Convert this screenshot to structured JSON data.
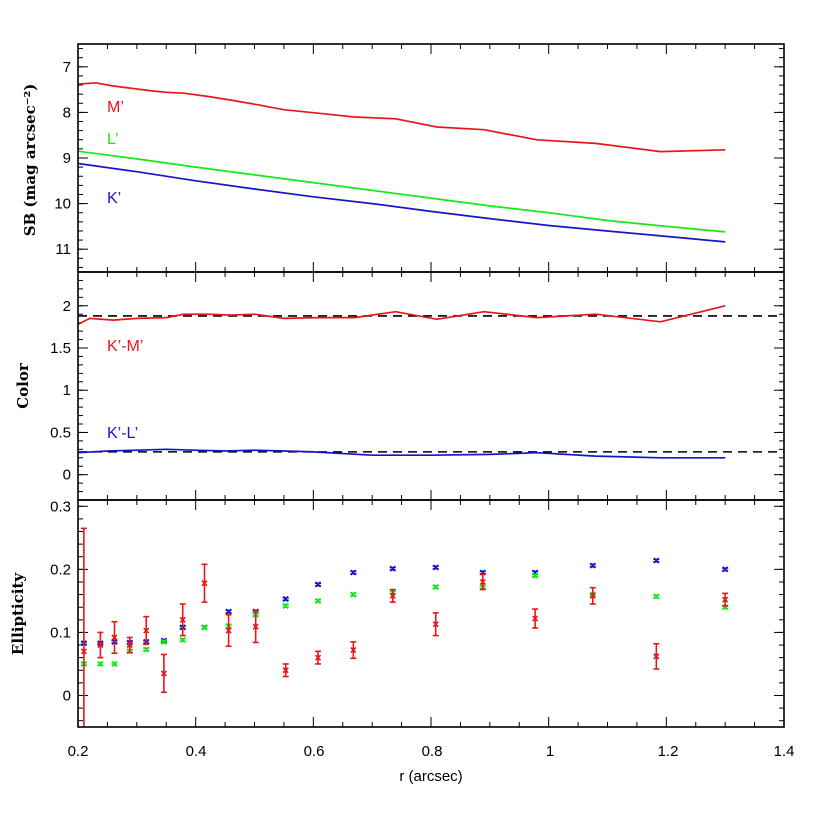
{
  "chart_data": {
    "type": "line",
    "xlabel": "r (arcsec)",
    "xlim": [
      0.2,
      1.4
    ],
    "xticks": [
      "0.2",
      "0.4",
      "0.6",
      "0.8",
      "1",
      "1.2",
      "1.4"
    ],
    "colors": {
      "M": "#e8161b",
      "L": "#16e816",
      "K": "#1616c8"
    },
    "panels": [
      {
        "id": "sb",
        "ylabel": "SB (mag arcsec⁻²)",
        "ylim": [
          11.5,
          6.5
        ],
        "inverted": true,
        "yticks": [
          "7",
          "8",
          "9",
          "10",
          "11"
        ],
        "series": [
          {
            "name": "M’",
            "color": "#e8161b",
            "x": [
              0.2,
              0.23,
              0.26,
              0.29,
              0.32,
              0.35,
              0.38,
              0.42,
              0.46,
              0.5,
              0.55,
              0.61,
              0.67,
              0.74,
              0.81,
              0.89,
              0.98,
              1.08,
              1.19,
              1.3
            ],
            "y": [
              7.38,
              7.35,
              7.42,
              7.47,
              7.52,
              7.56,
              7.58,
              7.65,
              7.73,
              7.82,
              7.94,
              8.02,
              8.1,
              8.14,
              8.32,
              8.38,
              8.6,
              8.68,
              8.86,
              8.82
            ]
          },
          {
            "name": "L’",
            "color": "#16e816",
            "x": [
              0.2,
              0.3,
              0.4,
              0.5,
              0.6,
              0.7,
              0.8,
              0.9,
              1.0,
              1.1,
              1.2,
              1.3
            ],
            "y": [
              8.85,
              9.02,
              9.2,
              9.37,
              9.54,
              9.71,
              9.88,
              10.05,
              10.2,
              10.37,
              10.5,
              10.62
            ]
          },
          {
            "name": "K’",
            "color": "#1616c8",
            "x": [
              0.2,
              0.3,
              0.4,
              0.5,
              0.6,
              0.7,
              0.8,
              0.9,
              1.0,
              1.1,
              1.2,
              1.3
            ],
            "y": [
              9.12,
              9.3,
              9.5,
              9.68,
              9.85,
              10.0,
              10.17,
              10.33,
              10.48,
              10.6,
              10.72,
              10.84
            ]
          }
        ]
      },
      {
        "id": "color",
        "ylabel": "Color",
        "ylim": [
          -0.3,
          2.4
        ],
        "yticks": [
          "0",
          "0.5",
          "1",
          "1.5",
          "2"
        ],
        "ytick_values": [
          0,
          0.5,
          1,
          1.5,
          2
        ],
        "reference_lines": [
          1.88,
          0.27
        ],
        "series": [
          {
            "name": "K’-M’",
            "color": "#e8161b",
            "x": [
              0.2,
              0.22,
              0.26,
              0.3,
              0.35,
              0.38,
              0.42,
              0.46,
              0.5,
              0.55,
              0.61,
              0.67,
              0.74,
              0.81,
              0.89,
              0.98,
              1.08,
              1.19,
              1.3
            ],
            "y": [
              1.78,
              1.85,
              1.83,
              1.85,
              1.86,
              1.9,
              1.9,
              1.89,
              1.9,
              1.85,
              1.86,
              1.86,
              1.93,
              1.84,
              1.93,
              1.86,
              1.9,
              1.81,
              2.0
            ]
          },
          {
            "name": "K’-L’",
            "color": "#1616c8",
            "x": [
              0.2,
              0.25,
              0.3,
              0.35,
              0.4,
              0.45,
              0.5,
              0.55,
              0.6,
              0.7,
              0.8,
              0.9,
              0.98,
              1.08,
              1.19,
              1.3
            ],
            "y": [
              0.26,
              0.28,
              0.29,
              0.3,
              0.29,
              0.28,
              0.29,
              0.28,
              0.27,
              0.23,
              0.23,
              0.24,
              0.26,
              0.22,
              0.2,
              0.2
            ]
          }
        ]
      },
      {
        "id": "ellipticity",
        "ylabel": "Ellipticity",
        "ylim": [
          -0.05,
          0.31
        ],
        "yticks": [
          "0",
          "0.1",
          "0.2",
          "0.3"
        ],
        "ytick_values": [
          0,
          0.1,
          0.2,
          0.3
        ],
        "series": [
          {
            "name": "K’",
            "color": "#1616c8",
            "points": [
              [
                0.21,
                0.083,
                0.002
              ],
              [
                0.238,
                0.083,
                0.002
              ],
              [
                0.262,
                0.085,
                0.002
              ],
              [
                0.288,
                0.084,
                0.002
              ],
              [
                0.316,
                0.085,
                0.002
              ],
              [
                0.346,
                0.087,
                0.002
              ],
              [
                0.378,
                0.108,
                0.002
              ],
              [
                0.415,
                0.108,
                0.002
              ],
              [
                0.456,
                0.133,
                0.002
              ],
              [
                0.502,
                0.133,
                0.002
              ],
              [
                0.553,
                0.153,
                0.002
              ],
              [
                0.608,
                0.176,
                0.002
              ],
              [
                0.668,
                0.195,
                0.002
              ],
              [
                0.735,
                0.201,
                0.002
              ],
              [
                0.808,
                0.203,
                0.002
              ],
              [
                0.888,
                0.195,
                0.002
              ],
              [
                0.977,
                0.195,
                0.002
              ],
              [
                1.075,
                0.206,
                0.002
              ],
              [
                1.183,
                0.214,
                0.002
              ],
              [
                1.3,
                0.2,
                0.002
              ]
            ]
          },
          {
            "name": "L’",
            "color": "#16e816",
            "points": [
              [
                0.21,
                0.05,
                0.002
              ],
              [
                0.238,
                0.05,
                0.002
              ],
              [
                0.262,
                0.05,
                0.002
              ],
              [
                0.288,
                0.07,
                0.002
              ],
              [
                0.316,
                0.073,
                0.002
              ],
              [
                0.346,
                0.085,
                0.002
              ],
              [
                0.378,
                0.088,
                0.002
              ],
              [
                0.415,
                0.108,
                0.002
              ],
              [
                0.456,
                0.11,
                0.002
              ],
              [
                0.502,
                0.128,
                0.002
              ],
              [
                0.553,
                0.142,
                0.002
              ],
              [
                0.608,
                0.15,
                0.002
              ],
              [
                0.668,
                0.16,
                0.002
              ],
              [
                0.735,
                0.163,
                0.002
              ],
              [
                0.808,
                0.172,
                0.002
              ],
              [
                0.888,
                0.172,
                0.002
              ],
              [
                0.977,
                0.19,
                0.002
              ],
              [
                1.075,
                0.16,
                0.002
              ],
              [
                1.183,
                0.157,
                0.002
              ],
              [
                1.3,
                0.14,
                0.002
              ]
            ]
          },
          {
            "name": "M’",
            "color": "#e8161b",
            "points": [
              [
                0.21,
                0.07,
                0.195
              ],
              [
                0.238,
                0.08,
                0.02
              ],
              [
                0.262,
                0.092,
                0.025
              ],
              [
                0.288,
                0.08,
                0.012
              ],
              [
                0.316,
                0.103,
                0.022
              ],
              [
                0.346,
                0.035,
                0.03
              ],
              [
                0.378,
                0.12,
                0.025
              ],
              [
                0.415,
                0.178,
                0.03
              ],
              [
                0.456,
                0.103,
                0.025
              ],
              [
                0.502,
                0.109,
                0.025
              ],
              [
                0.553,
                0.04,
                0.01
              ],
              [
                0.608,
                0.06,
                0.01
              ],
              [
                0.668,
                0.072,
                0.013
              ],
              [
                0.735,
                0.158,
                0.01
              ],
              [
                0.808,
                0.113,
                0.018
              ],
              [
                0.888,
                0.18,
                0.012
              ],
              [
                0.977,
                0.122,
                0.015
              ],
              [
                1.075,
                0.158,
                0.013
              ],
              [
                1.183,
                0.062,
                0.02
              ],
              [
                1.3,
                0.152,
                0.01
              ]
            ]
          }
        ]
      }
    ]
  }
}
